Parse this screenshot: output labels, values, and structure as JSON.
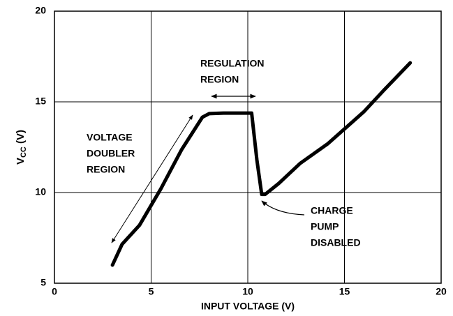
{
  "chart_data": {
    "type": "line",
    "xlabel": "INPUT VOLTAGE (V)",
    "ylabel_parts": [
      "V",
      "CC",
      "(V)"
    ],
    "xlim": [
      0,
      20
    ],
    "xticks": [
      0,
      5,
      10,
      15,
      20
    ],
    "ylim": [
      5,
      20
    ],
    "yticks": [
      5,
      10,
      15,
      20
    ],
    "grid": true,
    "series": [
      {
        "color": "#000000",
        "x": [
          3.0,
          3.5,
          4.4,
          5.5,
          6.57,
          7.65,
          8.0,
          8.74,
          10.2,
          10.25,
          10.47,
          10.72,
          10.9,
          11.6,
          12.7,
          14.15,
          16.0,
          17.0,
          18.4
        ],
        "values": [
          6.0,
          7.15,
          8.2,
          10.2,
          12.35,
          14.15,
          14.35,
          14.38,
          14.38,
          13.9,
          11.8,
          9.9,
          9.9,
          10.5,
          11.6,
          12.7,
          14.45,
          15.6,
          17.15
        ]
      }
    ],
    "annotations": [
      [
        "REGULATION",
        "REGION"
      ],
      [
        "VOLTAGE",
        "DOUBLER",
        "REGION"
      ],
      [
        "CHARGE",
        "PUMP",
        "DISABLED"
      ]
    ]
  }
}
